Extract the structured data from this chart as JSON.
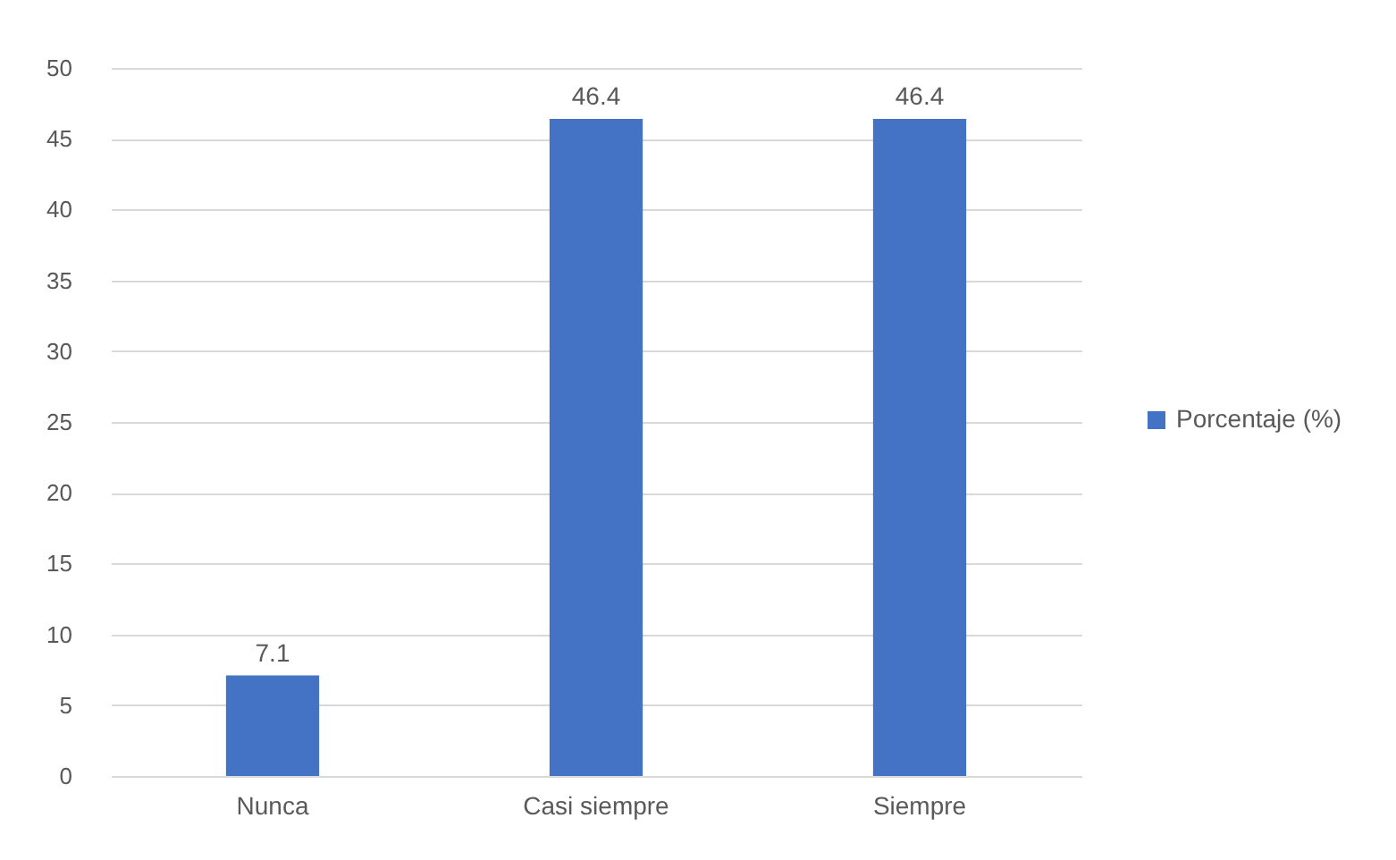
{
  "chart_data": {
    "type": "bar",
    "categories": [
      "Nunca",
      "Casi siempre",
      "Siempre"
    ],
    "series": [
      {
        "name": "Porcentaje (%)",
        "color": "#4472c4",
        "values": [
          7.1,
          46.4,
          46.4
        ]
      }
    ],
    "ylim": [
      0,
      50
    ],
    "yticks": [
      0,
      5,
      10,
      15,
      20,
      25,
      30,
      35,
      40,
      45,
      50
    ],
    "grid": "y",
    "legend": "right",
    "data_labels": true
  }
}
